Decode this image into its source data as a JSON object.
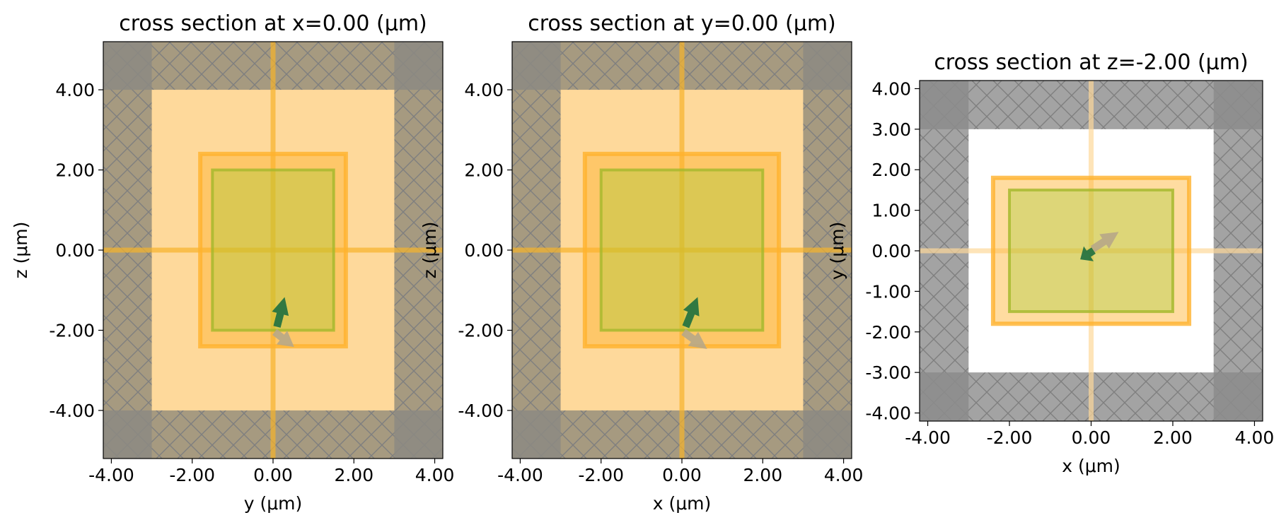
{
  "chart_data": [
    {
      "type": "cross-section",
      "title": "cross section at x=0.00 (μm)",
      "xlabel": "y (μm)",
      "ylabel": "z (μm)",
      "xlim": [
        -4.2,
        4.2
      ],
      "ylim": [
        -5.2,
        5.2
      ],
      "xticks": [
        -4,
        -2,
        0,
        2,
        4
      ],
      "yticks": [
        -4,
        -2,
        0,
        2,
        4
      ],
      "tick_labels_x": [
        "-4.00",
        "-2.00",
        "0.00",
        "2.00",
        "4.00"
      ],
      "tick_labels_y": [
        "-4.00",
        "-2.00",
        "0.00",
        "2.00",
        "4.00"
      ],
      "simulation_domain": {
        "h": [
          -3,
          3
        ],
        "v": [
          -4,
          4
        ],
        "fill": "#fed99b"
      },
      "pml_color": "#a69a80",
      "pml_corner_color": "#8c8a82",
      "monitor_outer": {
        "h": [
          -1.8,
          1.8
        ],
        "v": [
          -2.4,
          2.4
        ]
      },
      "monitor_inner": {
        "h": [
          -1.5,
          1.5
        ],
        "v": [
          -2.0,
          2.0
        ]
      },
      "crosshair": {
        "h": 0,
        "v": 0,
        "color": "#f7b42b"
      },
      "arrows": [
        {
          "from": [
            0.1,
            -1.9
          ],
          "to": [
            0.28,
            -1.2
          ],
          "color": "#1f7040",
          "kind": "polarization"
        },
        {
          "from": [
            0.05,
            -2.05
          ],
          "to": [
            0.5,
            -2.4
          ],
          "color": "#b8a888",
          "kind": "direction"
        }
      ]
    },
    {
      "type": "cross-section",
      "title": "cross section at y=0.00 (μm)",
      "xlabel": "x (μm)",
      "ylabel": "z (μm)",
      "xlim": [
        -4.2,
        4.2
      ],
      "ylim": [
        -5.2,
        5.2
      ],
      "xticks": [
        -4,
        -2,
        0,
        2,
        4
      ],
      "yticks": [
        -4,
        -2,
        0,
        2,
        4
      ],
      "tick_labels_x": [
        "-4.00",
        "-2.00",
        "0.00",
        "2.00",
        "4.00"
      ],
      "tick_labels_y": [
        "-4.00",
        "-2.00",
        "0.00",
        "2.00",
        "4.00"
      ],
      "simulation_domain": {
        "h": [
          -3,
          3
        ],
        "v": [
          -4,
          4
        ],
        "fill": "#fed99b"
      },
      "pml_color": "#a69a80",
      "pml_corner_color": "#8c8a82",
      "monitor_outer": {
        "h": [
          -2.4,
          2.4
        ],
        "v": [
          -2.4,
          2.4
        ]
      },
      "monitor_inner": {
        "h": [
          -2.0,
          2.0
        ],
        "v": [
          -2.0,
          2.0
        ]
      },
      "crosshair": {
        "h": 0,
        "v": 0,
        "color": "#f7b42b"
      },
      "arrows": [
        {
          "from": [
            0.1,
            -1.9
          ],
          "to": [
            0.38,
            -1.2
          ],
          "color": "#1f7040",
          "kind": "polarization"
        },
        {
          "from": [
            0.05,
            -2.05
          ],
          "to": [
            0.6,
            -2.45
          ],
          "color": "#b8a888",
          "kind": "direction"
        }
      ]
    },
    {
      "type": "cross-section",
      "title": "cross section at z=-2.00 (μm)",
      "xlabel": "x (μm)",
      "ylabel": "y (μm)",
      "xlim": [
        -4.2,
        4.2
      ],
      "ylim": [
        -4.2,
        4.2
      ],
      "xticks": [
        -4,
        -2,
        0,
        2,
        4
      ],
      "yticks": [
        -4,
        -3,
        -2,
        -1,
        0,
        1,
        2,
        3,
        4
      ],
      "tick_labels_x": [
        "-4.00",
        "-2.00",
        "0.00",
        "2.00",
        "4.00"
      ],
      "tick_labels_y": [
        "-4.00",
        "-3.00",
        "-2.00",
        "-1.00",
        "0.00",
        "1.00",
        "2.00",
        "3.00",
        "4.00"
      ],
      "simulation_domain": {
        "h": [
          -3,
          3
        ],
        "v": [
          -3,
          3
        ],
        "fill": "#ffffff"
      },
      "pml_color": "#a3a3a3",
      "pml_corner_color": "#8c8c8c",
      "monitor_outer": {
        "h": [
          -2.4,
          2.4
        ],
        "v": [
          -1.8,
          1.8
        ]
      },
      "monitor_inner": {
        "h": [
          -2.0,
          2.0
        ],
        "v": [
          -1.5,
          1.5
        ]
      },
      "crosshair": {
        "h": 0,
        "v": 0,
        "color": "#fed99b"
      },
      "arrows": [
        {
          "from": [
            0.05,
            0.0
          ],
          "to": [
            -0.25,
            -0.2
          ],
          "color": "#1f7040",
          "kind": "polarization"
        },
        {
          "from": [
            0.05,
            0.05
          ],
          "to": [
            0.65,
            0.45
          ],
          "color": "#b8a888",
          "kind": "direction"
        }
      ]
    }
  ]
}
